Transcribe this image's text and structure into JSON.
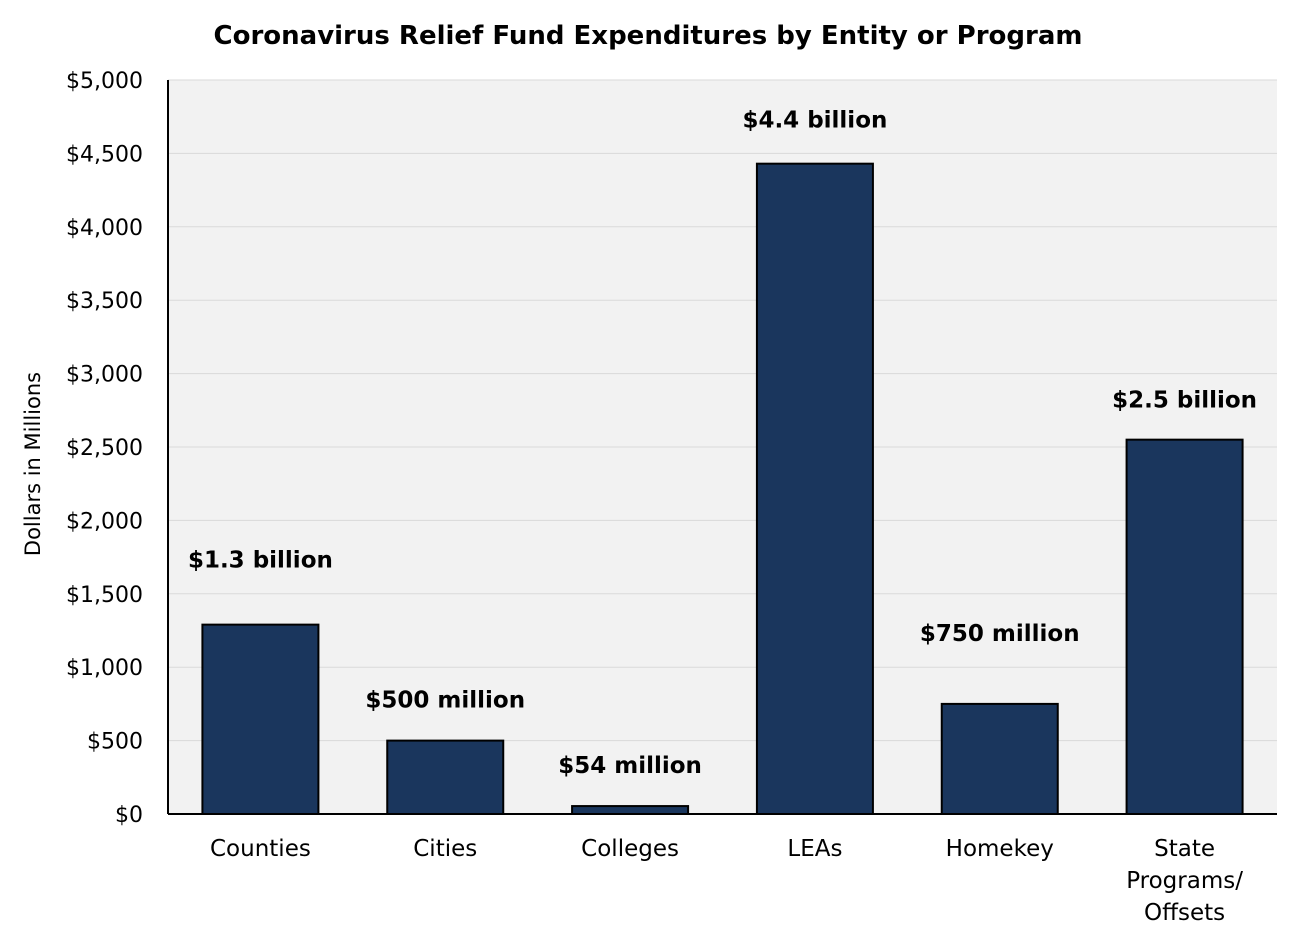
{
  "chart_data": {
    "type": "bar",
    "title": "Coronavirus Relief Fund Expenditures by Entity or Program",
    "xlabel": "",
    "ylabel": "Dollars in Millions",
    "ylim": [
      0,
      5000
    ],
    "yticks": [
      0,
      500,
      1000,
      1500,
      2000,
      2500,
      3000,
      3500,
      4000,
      4500,
      5000
    ],
    "ytick_labels": [
      "$0",
      "$500",
      "$1,000",
      "$1,500",
      "$2,000",
      "$2,500",
      "$3,000",
      "$3,500",
      "$4,000",
      "$4,500",
      "$5,000"
    ],
    "categories": [
      "Counties",
      "Cities",
      "Colleges",
      "LEAs",
      "Homekey",
      "State\nPrograms/\nOffsets"
    ],
    "values": [
      1290,
      500,
      54,
      4430,
      750,
      2550
    ],
    "data_labels": [
      "$1.3 billion",
      "$500 million",
      "$54 million",
      "$4.4 billion",
      "$750 million",
      "$2.5 billion"
    ],
    "grid": true,
    "legend": "none",
    "colors": {
      "bar": "#1a365d",
      "plot_background": "#f2f2f2",
      "grid": "#d9d9d9"
    }
  }
}
